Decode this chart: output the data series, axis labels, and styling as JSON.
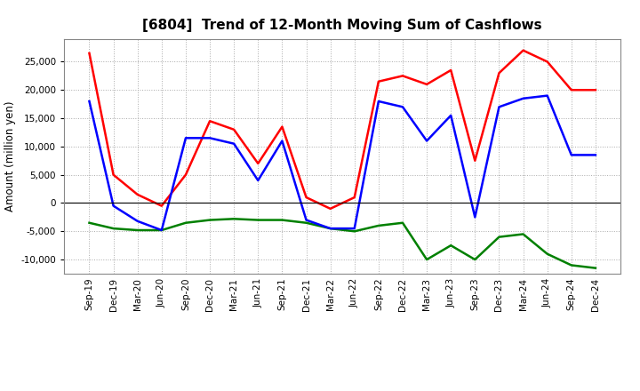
{
  "title": "[6804]  Trend of 12-Month Moving Sum of Cashflows",
  "ylabel": "Amount (million yen)",
  "background_color": "#ffffff",
  "grid_color": "#aaaaaa",
  "x_labels": [
    "Sep-19",
    "Dec-19",
    "Mar-20",
    "Jun-20",
    "Sep-20",
    "Dec-20",
    "Mar-21",
    "Jun-21",
    "Sep-21",
    "Dec-21",
    "Mar-22",
    "Jun-22",
    "Sep-22",
    "Dec-22",
    "Mar-23",
    "Jun-23",
    "Sep-23",
    "Dec-23",
    "Mar-24",
    "Jun-24",
    "Sep-24",
    "Dec-24"
  ],
  "operating": [
    26500,
    5000,
    1500,
    -500,
    5000,
    14500,
    13000,
    7000,
    13500,
    1000,
    -1000,
    1000,
    21500,
    22500,
    21000,
    23500,
    7500,
    23000,
    27000,
    25000,
    20000,
    20000
  ],
  "investing": [
    -3500,
    -4500,
    -4800,
    -4800,
    -3500,
    -3000,
    -2800,
    -3000,
    -3000,
    -3500,
    -4500,
    -5000,
    -4000,
    -3500,
    -10000,
    -7500,
    -10000,
    -6000,
    -5500,
    -9000,
    -11000,
    -11500
  ],
  "free": [
    18000,
    -500,
    -3200,
    -4800,
    11500,
    11500,
    10500,
    4000,
    11000,
    -3000,
    -4500,
    -4500,
    18000,
    17000,
    11000,
    15500,
    -2500,
    17000,
    18500,
    19000,
    8500,
    8500
  ],
  "operating_color": "#ff0000",
  "investing_color": "#008000",
  "free_color": "#0000ff",
  "ylim": [
    -12500,
    29000
  ],
  "yticks": [
    -10000,
    -5000,
    0,
    5000,
    10000,
    15000,
    20000,
    25000
  ],
  "line_width": 1.8,
  "title_fontsize": 11,
  "tick_fontsize": 7.5,
  "ylabel_fontsize": 8.5,
  "legend_fontsize": 8.5
}
